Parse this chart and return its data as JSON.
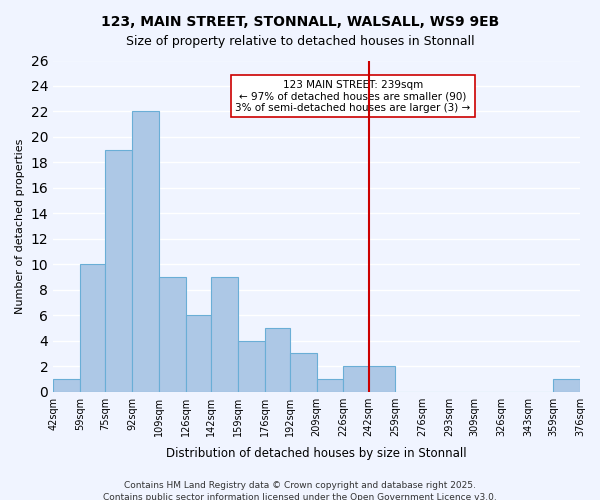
{
  "title1": "123, MAIN STREET, STONNALL, WALSALL, WS9 9EB",
  "title2": "Size of property relative to detached houses in Stonnall",
  "xlabel": "Distribution of detached houses by size in Stonnall",
  "ylabel": "Number of detached properties",
  "bar_edges": [
    42,
    59,
    75,
    92,
    109,
    126,
    142,
    159,
    176,
    192,
    209,
    226,
    242,
    259,
    276,
    293,
    309,
    326,
    343,
    359,
    376
  ],
  "bar_heights": [
    1,
    10,
    19,
    22,
    9,
    6,
    9,
    4,
    5,
    3,
    1,
    2,
    2,
    0,
    0,
    0,
    0,
    0,
    0,
    1
  ],
  "bar_color": "#adc8e6",
  "bar_edge_color": "#6aaed6",
  "vline_x": 242,
  "vline_color": "#cc0000",
  "annotation_title": "123 MAIN STREET: 239sqm",
  "annotation_line1": "← 97% of detached houses are smaller (90)",
  "annotation_line2": "3% of semi-detached houses are larger (3) →",
  "annotation_box_color": "#ffffff",
  "annotation_box_edge": "#cc0000",
  "ylim": [
    0,
    26
  ],
  "yticks": [
    0,
    2,
    4,
    6,
    8,
    10,
    12,
    14,
    16,
    18,
    20,
    22,
    24,
    26
  ],
  "tick_labels": [
    "42sqm",
    "59sqm",
    "75sqm",
    "92sqm",
    "109sqm",
    "126sqm",
    "142sqm",
    "159sqm",
    "176sqm",
    "192sqm",
    "209sqm",
    "226sqm",
    "242sqm",
    "259sqm",
    "276sqm",
    "293sqm",
    "309sqm",
    "326sqm",
    "343sqm",
    "359sqm",
    "376sqm"
  ],
  "footer1": "Contains HM Land Registry data © Crown copyright and database right 2025.",
  "footer2": "Contains public sector information licensed under the Open Government Licence v3.0.",
  "background_color": "#f0f4ff",
  "grid_color": "#ffffff"
}
